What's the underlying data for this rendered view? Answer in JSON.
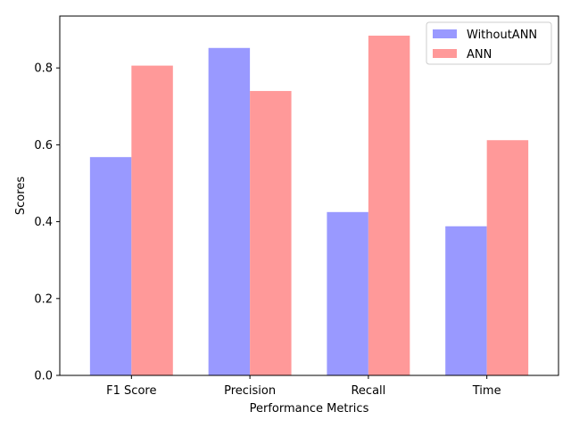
{
  "chart_data": {
    "type": "bar",
    "categories": [
      "F1 Score",
      "Precision",
      "Recall",
      "Time"
    ],
    "series": [
      {
        "name": "WithoutANN",
        "values": [
          0.568,
          0.852,
          0.425,
          0.388
        ],
        "color": "#9999ff"
      },
      {
        "name": "ANN",
        "values": [
          0.806,
          0.74,
          0.884,
          0.612
        ],
        "color": "#ff9999"
      }
    ],
    "xlabel": "Performance Metrics",
    "ylabel": "Scores",
    "ylim": [
      0,
      0.935
    ],
    "yticks": [
      "0.0",
      "0.2",
      "0.4",
      "0.6",
      "0.8"
    ],
    "legend_position": "top-right",
    "grid": false
  }
}
